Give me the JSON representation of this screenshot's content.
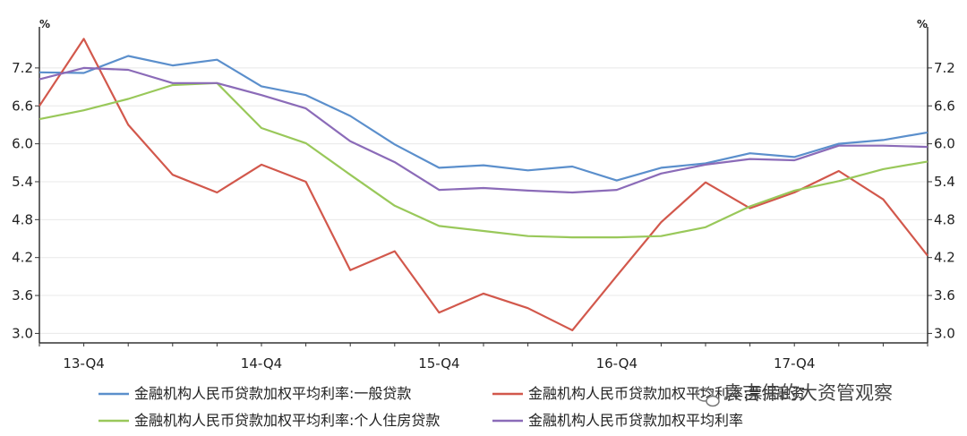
{
  "chart_data": {
    "type": "line",
    "x": [
      "13-Q3",
      "13-Q4",
      "14-Q1",
      "14-Q2",
      "14-Q3",
      "14-Q4",
      "15-Q1",
      "15-Q2",
      "15-Q3",
      "15-Q4",
      "16-Q1",
      "16-Q2",
      "16-Q3",
      "16-Q4",
      "17-Q1",
      "17-Q2",
      "17-Q3",
      "17-Q4",
      "18-Q1",
      "18-Q2",
      "18-Q3"
    ],
    "x_tick_labels": [
      "13-Q4",
      "14-Q4",
      "15-Q4",
      "16-Q4",
      "17-Q4"
    ],
    "x_tick_indices": [
      1,
      5,
      9,
      13,
      17
    ],
    "ylim": [
      2.85,
      7.85
    ],
    "y_ticks": [
      3.0,
      3.6,
      4.2,
      4.8,
      5.4,
      6.0,
      6.6,
      7.2
    ],
    "y_unit_left": "%",
    "y_unit_right": "%",
    "grid": true,
    "legend_position": "bottom",
    "series": [
      {
        "name": "金融机构人民币贷款加权平均利率:一般贷款",
        "color": "#5b8fcc",
        "values": [
          7.13,
          7.12,
          7.39,
          7.24,
          7.33,
          6.91,
          6.77,
          6.44,
          5.99,
          5.62,
          5.66,
          5.58,
          5.64,
          5.42,
          5.62,
          5.69,
          5.85,
          5.79,
          6.0,
          6.06,
          6.18
        ]
      },
      {
        "name": "金融机构人民币贷款加权平均利率:票据融资",
        "color": "#d2584c",
        "values": [
          6.6,
          7.66,
          6.3,
          5.51,
          5.23,
          5.67,
          5.4,
          4.0,
          4.3,
          3.33,
          3.63,
          3.4,
          3.05,
          3.91,
          4.76,
          5.39,
          4.98,
          5.23,
          5.57,
          5.12,
          4.23
        ]
      },
      {
        "name": "金融机构人民币贷款加权平均利率:个人住房贷款",
        "color": "#99c85a",
        "values": [
          6.39,
          6.53,
          6.71,
          6.93,
          6.96,
          6.25,
          6.01,
          5.51,
          5.02,
          4.7,
          4.62,
          4.54,
          4.52,
          4.52,
          4.54,
          4.68,
          5.01,
          5.26,
          5.41,
          5.6,
          5.72
        ]
      },
      {
        "name": "金融机构人民币贷款加权平均利率",
        "color": "#8b6bb8",
        "values": [
          7.02,
          7.2,
          7.17,
          6.96,
          6.96,
          6.77,
          6.56,
          6.04,
          5.71,
          5.27,
          5.3,
          5.26,
          5.23,
          5.27,
          5.53,
          5.67,
          5.76,
          5.74,
          5.97,
          5.97,
          5.95
        ]
      }
    ]
  },
  "watermark": "袁吉伟的大资管观察"
}
